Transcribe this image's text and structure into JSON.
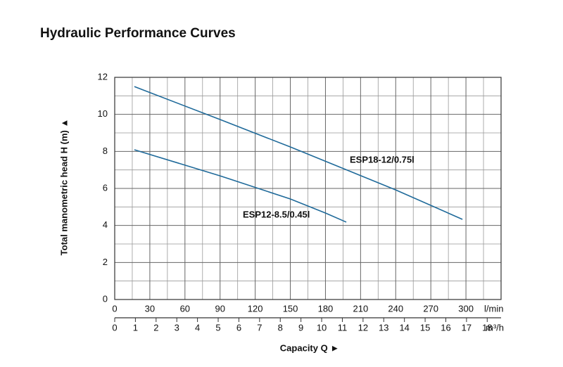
{
  "chart_data": {
    "type": "line",
    "title": "Hydraulic Performance Curves",
    "y_label": "Total manometric head H (m) ▲",
    "x_label": "Capacity Q ►",
    "x_unit": "l/min",
    "x2_unit": "m³/h",
    "xlim": [
      0,
      330
    ],
    "xticks": [
      0,
      30,
      60,
      90,
      120,
      150,
      180,
      210,
      240,
      270,
      300
    ],
    "xminorticks": [
      15,
      45,
      75,
      105,
      135,
      165,
      195,
      225,
      255,
      285,
      315
    ],
    "x2lim": [
      0,
      18.67
    ],
    "x2ticks": [
      0,
      1,
      2,
      3,
      4,
      5,
      6,
      7,
      8,
      9,
      10,
      11,
      12,
      13,
      14,
      15,
      16,
      17,
      18
    ],
    "ylim": [
      0,
      12
    ],
    "yticks": [
      0,
      2,
      4,
      6,
      8,
      10,
      12
    ],
    "yminorticks": [
      1,
      3,
      5,
      7,
      9,
      11
    ],
    "grid": true,
    "series": [
      {
        "name": "ESP18-12/0.75l",
        "color": "#1f6a9a",
        "x": [
          16.8,
          90,
          150,
          240,
          297
        ],
        "values": [
          11.5,
          9.72,
          8.24,
          5.92,
          4.33
        ]
      },
      {
        "name": "ESP12-8.5/0.45l",
        "color": "#1f6a9a",
        "x": [
          16.8,
          90,
          150,
          180,
          197.8
        ],
        "values": [
          8.09,
          6.68,
          5.43,
          4.67,
          4.18
        ]
      }
    ]
  }
}
